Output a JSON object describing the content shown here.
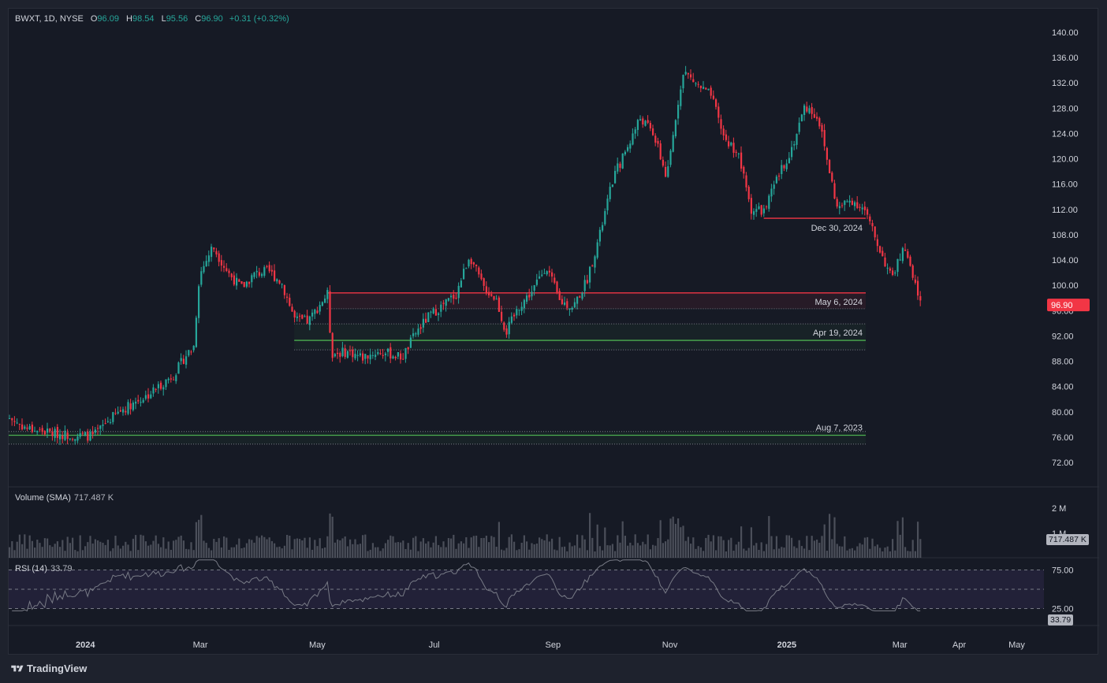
{
  "legend": {
    "symbol": "BWXT, 1D, NYSE",
    "open_label": "O",
    "open": "96.09",
    "high_label": "H",
    "high": "98.54",
    "low_label": "L",
    "low": "95.56",
    "close_label": "C",
    "close": "96.90",
    "change": "+0.31 (+0.32%)"
  },
  "volume": {
    "label": "Volume (SMA)",
    "value": "717.487 K",
    "tag": "717.487 K",
    "axis_2m": "2 M",
    "axis_1m": "1 M"
  },
  "rsi": {
    "label": "RSI (14)",
    "value": "33.79",
    "tag": "33.79",
    "axis_75": "75.00",
    "axis_25": "25.00"
  },
  "footer": {
    "brand": "TradingView"
  },
  "chart_data": {
    "type": "candlestick",
    "symbol": "BWXT",
    "interval": "1D",
    "exchange": "NYSE",
    "price_axis": [
      "140.00",
      "136.00",
      "132.00",
      "128.00",
      "124.00",
      "120.00",
      "116.00",
      "112.00",
      "108.00",
      "104.00",
      "100.00",
      "96.00",
      "92.00",
      "88.00",
      "84.00",
      "80.00",
      "76.00",
      "72.00"
    ],
    "ylim": [
      70,
      141.5
    ],
    "time_axis": [
      "2024",
      "Mar",
      "May",
      "Jul",
      "Sep",
      "Nov",
      "2025",
      "Mar",
      "Apr",
      "May"
    ],
    "close_path": [
      [
        "2023-11-22",
        79.0
      ],
      [
        "2023-12-01",
        77.4
      ],
      [
        "2023-12-15",
        76.6
      ],
      [
        "2023-12-29",
        76.2
      ],
      [
        "2024-01-05",
        76.2
      ],
      [
        "2024-01-12",
        78.5
      ],
      [
        "2024-01-19",
        80.2
      ],
      [
        "2024-01-26",
        81.5
      ],
      [
        "2024-02-02",
        82.6
      ],
      [
        "2024-02-09",
        84.3
      ],
      [
        "2024-02-16",
        86.0
      ],
      [
        "2024-02-23",
        89.4
      ],
      [
        "2024-02-26",
        90.0
      ],
      [
        "2024-02-29",
        101.5
      ],
      [
        "2024-03-07",
        106.2
      ],
      [
        "2024-03-15",
        102.0
      ],
      [
        "2024-03-22",
        99.6
      ],
      [
        "2024-03-29",
        101.8
      ],
      [
        "2024-04-05",
        102.3
      ],
      [
        "2024-04-12",
        100.4
      ],
      [
        "2024-04-19",
        94.5
      ],
      [
        "2024-04-26",
        94.3
      ],
      [
        "2024-05-03",
        97.5
      ],
      [
        "2024-05-06",
        98.6
      ],
      [
        "2024-05-08",
        89.2
      ],
      [
        "2024-05-17",
        89.5
      ],
      [
        "2024-05-24",
        88.6
      ],
      [
        "2024-05-31",
        89.4
      ],
      [
        "2024-06-07",
        89.2
      ],
      [
        "2024-06-14",
        88.6
      ],
      [
        "2024-06-21",
        92.5
      ],
      [
        "2024-06-28",
        95.2
      ],
      [
        "2024-07-05",
        96.8
      ],
      [
        "2024-07-12",
        98.6
      ],
      [
        "2024-07-19",
        104.8
      ],
      [
        "2024-07-26",
        99.8
      ],
      [
        "2024-08-02",
        97.8
      ],
      [
        "2024-08-07",
        92.5
      ],
      [
        "2024-08-14",
        96.8
      ],
      [
        "2024-08-21",
        99.2
      ],
      [
        "2024-08-28",
        103.2
      ],
      [
        "2024-09-04",
        97.5
      ],
      [
        "2024-09-11",
        96.6
      ],
      [
        "2024-09-18",
        100.6
      ],
      [
        "2024-09-25",
        108.0
      ],
      [
        "2024-10-02",
        117.0
      ],
      [
        "2024-10-09",
        121.6
      ],
      [
        "2024-10-16",
        126.5
      ],
      [
        "2024-10-23",
        124.0
      ],
      [
        "2024-10-30",
        116.8
      ],
      [
        "2024-11-06",
        131.5
      ],
      [
        "2024-11-08",
        133.8
      ],
      [
        "2024-11-15",
        131.6
      ],
      [
        "2024-11-22",
        130.0
      ],
      [
        "2024-11-29",
        123.2
      ],
      [
        "2024-12-06",
        121.0
      ],
      [
        "2024-12-13",
        112.0
      ],
      [
        "2024-12-20",
        111.8
      ],
      [
        "2024-12-27",
        117.2
      ],
      [
        "2025-01-03",
        121.5
      ],
      [
        "2025-01-10",
        128.4
      ],
      [
        "2025-01-17",
        126.5
      ],
      [
        "2025-01-27",
        112.0
      ],
      [
        "2025-02-03",
        113.6
      ],
      [
        "2025-02-10",
        112.0
      ],
      [
        "2025-02-17",
        106.5
      ],
      [
        "2025-02-24",
        101.2
      ],
      [
        "2025-03-03",
        106.0
      ],
      [
        "2025-03-07",
        101.3
      ],
      [
        "2025-03-12",
        96.9
      ]
    ],
    "levels": [
      {
        "label": "Dec 30, 2024",
        "price": 110.6,
        "color": "#f23645",
        "from": "2024-12-20"
      },
      {
        "label": "May 6, 2024",
        "price": 98.8,
        "color": "#f23645",
        "zone_to": 96.3,
        "from": "2024-05-06"
      },
      {
        "label": "Apr 19, 2024",
        "price": 91.3,
        "color": "#4caf50",
        "zone_top": 93.9,
        "zone_bottom": 89.8,
        "from": "2024-04-19"
      },
      {
        "label": "Aug 7, 2023",
        "price": 76.3,
        "color": "#4caf50",
        "zone_top": 76.9,
        "zone_bottom": 74.9,
        "from": "2023-11-22"
      }
    ],
    "rsi_range": [
      25,
      75
    ],
    "colors": {
      "up": "#26a69a",
      "down": "#f23645",
      "background": "#161a25",
      "grid": "#2a2e39",
      "rsi_line": "#787b86",
      "rsi_band": "#7e57c2"
    }
  }
}
